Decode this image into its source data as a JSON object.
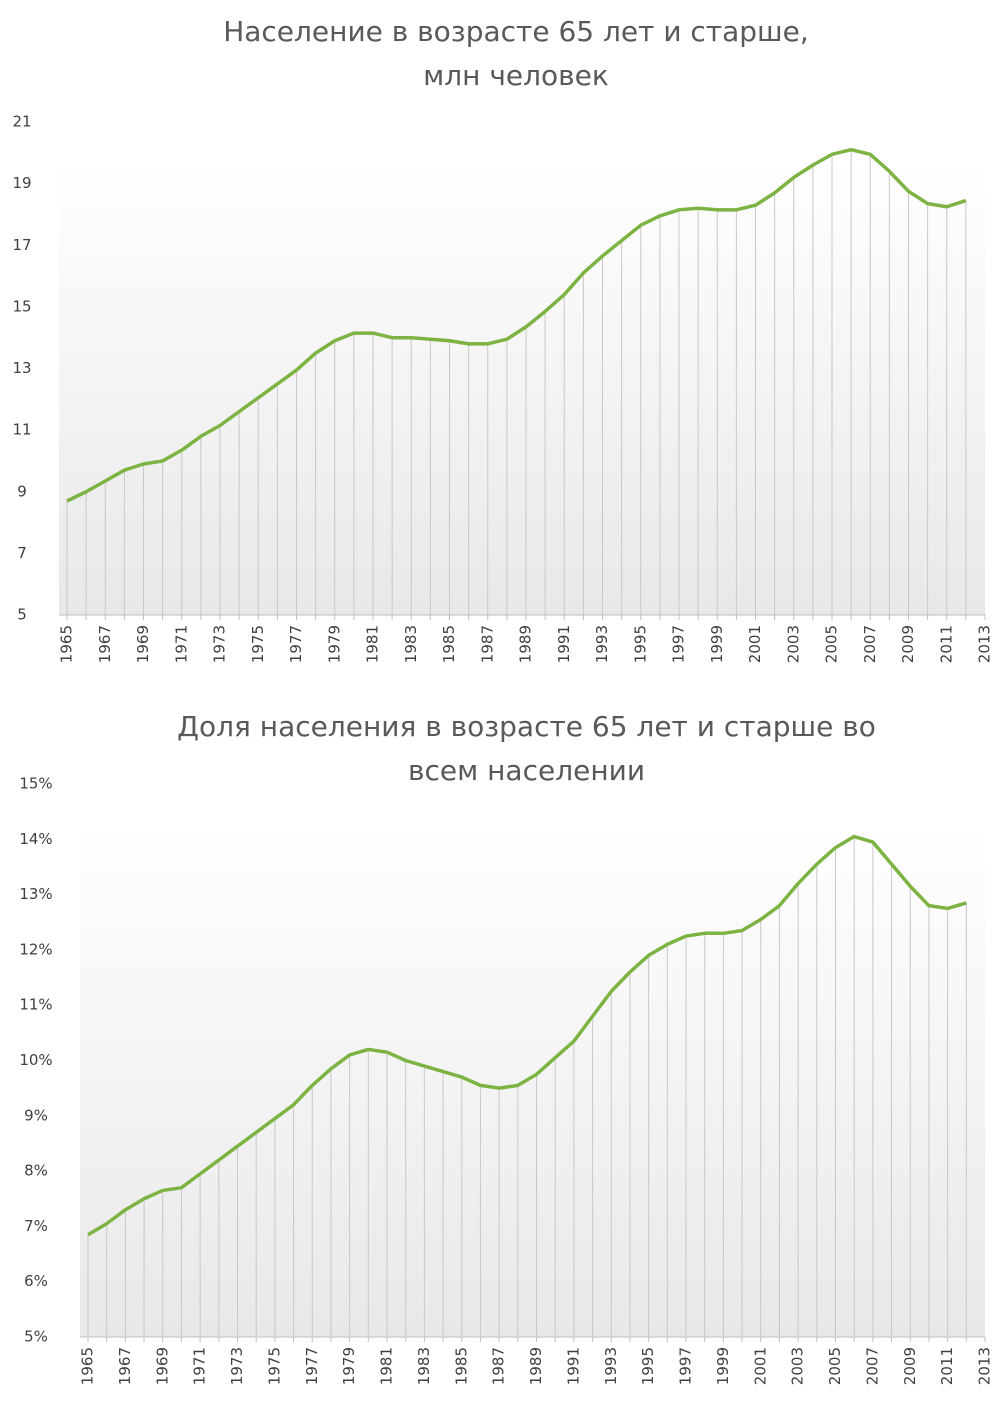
{
  "chart_data": [
    {
      "type": "line",
      "title": [
        "Население в возрасте 65 лет и старше,",
        "млн человек"
      ],
      "categories": [
        "1965",
        null,
        "1967",
        null,
        "1969",
        null,
        "1971",
        null,
        "1973",
        null,
        "1975",
        null,
        "1977",
        null,
        "1979",
        null,
        "1981",
        null,
        "1983",
        null,
        "1985",
        null,
        "1987",
        null,
        "1989",
        null,
        "1991",
        null,
        "1993",
        null,
        "1995",
        null,
        "1997",
        null,
        "1999",
        null,
        "2001",
        null,
        "2003",
        null,
        "2005",
        null,
        "2007",
        null,
        "2009",
        null,
        "2011",
        null,
        "2013"
      ],
      "values": [
        8.7,
        9.0,
        9.35,
        9.7,
        9.9,
        10.0,
        10.35,
        10.8,
        11.15,
        11.6,
        12.05,
        12.5,
        12.95,
        13.5,
        13.9,
        14.15,
        14.15,
        14.0,
        14.0,
        13.95,
        13.9,
        13.8,
        13.8,
        13.95,
        14.35,
        14.85,
        15.4,
        16.1,
        16.65,
        17.15,
        17.65,
        17.95,
        18.15,
        18.2,
        18.15,
        18.15,
        18.3,
        18.7,
        19.2,
        19.6,
        19.95,
        20.1,
        19.95,
        19.4,
        18.75,
        18.35,
        18.25,
        18.45,
        null
      ],
      "color": "#7cb342",
      "ylim": [
        5,
        21
      ],
      "yticks": [
        5,
        7,
        9,
        11,
        13,
        15,
        17,
        19,
        21
      ],
      "drop_lines": true
    },
    {
      "type": "line",
      "title": [
        "Доля населения в возрасте 65 лет и старше во",
        "всем населении"
      ],
      "categories": [
        "1965",
        null,
        "1967",
        null,
        "1969",
        null,
        "1971",
        null,
        "1973",
        null,
        "1975",
        null,
        "1977",
        null,
        "1979",
        null,
        "1981",
        null,
        "1983",
        null,
        "1985",
        null,
        "1987",
        null,
        "1989",
        null,
        "1991",
        null,
        "1993",
        null,
        "1995",
        null,
        "1997",
        null,
        "1999",
        null,
        "2001",
        null,
        "2003",
        null,
        "2005",
        null,
        "2007",
        null,
        "2009",
        null,
        "2011",
        null,
        "2013"
      ],
      "values": [
        6.85,
        7.05,
        7.3,
        7.5,
        7.65,
        7.7,
        7.95,
        8.2,
        8.45,
        8.7,
        8.95,
        9.2,
        9.55,
        9.85,
        10.1,
        10.2,
        10.15,
        10.0,
        9.9,
        9.8,
        9.7,
        9.55,
        9.5,
        9.55,
        9.75,
        10.05,
        10.35,
        10.8,
        11.25,
        11.6,
        11.9,
        12.1,
        12.25,
        12.3,
        12.3,
        12.35,
        12.55,
        12.8,
        13.2,
        13.55,
        13.85,
        14.05,
        13.95,
        13.55,
        13.15,
        12.8,
        12.75,
        12.85,
        null
      ],
      "color": "#7cb342",
      "ylim": [
        5,
        15
      ],
      "yticks": [
        {
          "value": 5,
          "label": "5%"
        },
        {
          "value": 6,
          "label": "6%"
        },
        {
          "value": 7,
          "label": "7%"
        },
        {
          "value": 8,
          "label": "8%"
        },
        {
          "value": 9,
          "label": "9%"
        },
        {
          "value": 10,
          "label": "10%"
        },
        {
          "value": 11,
          "label": "11%"
        },
        {
          "value": 12,
          "label": "12%"
        },
        {
          "value": 13,
          "label": "13%"
        },
        {
          "value": 14,
          "label": "14%"
        },
        {
          "value": 15,
          "label": "15%"
        }
      ],
      "drop_lines": true
    }
  ]
}
